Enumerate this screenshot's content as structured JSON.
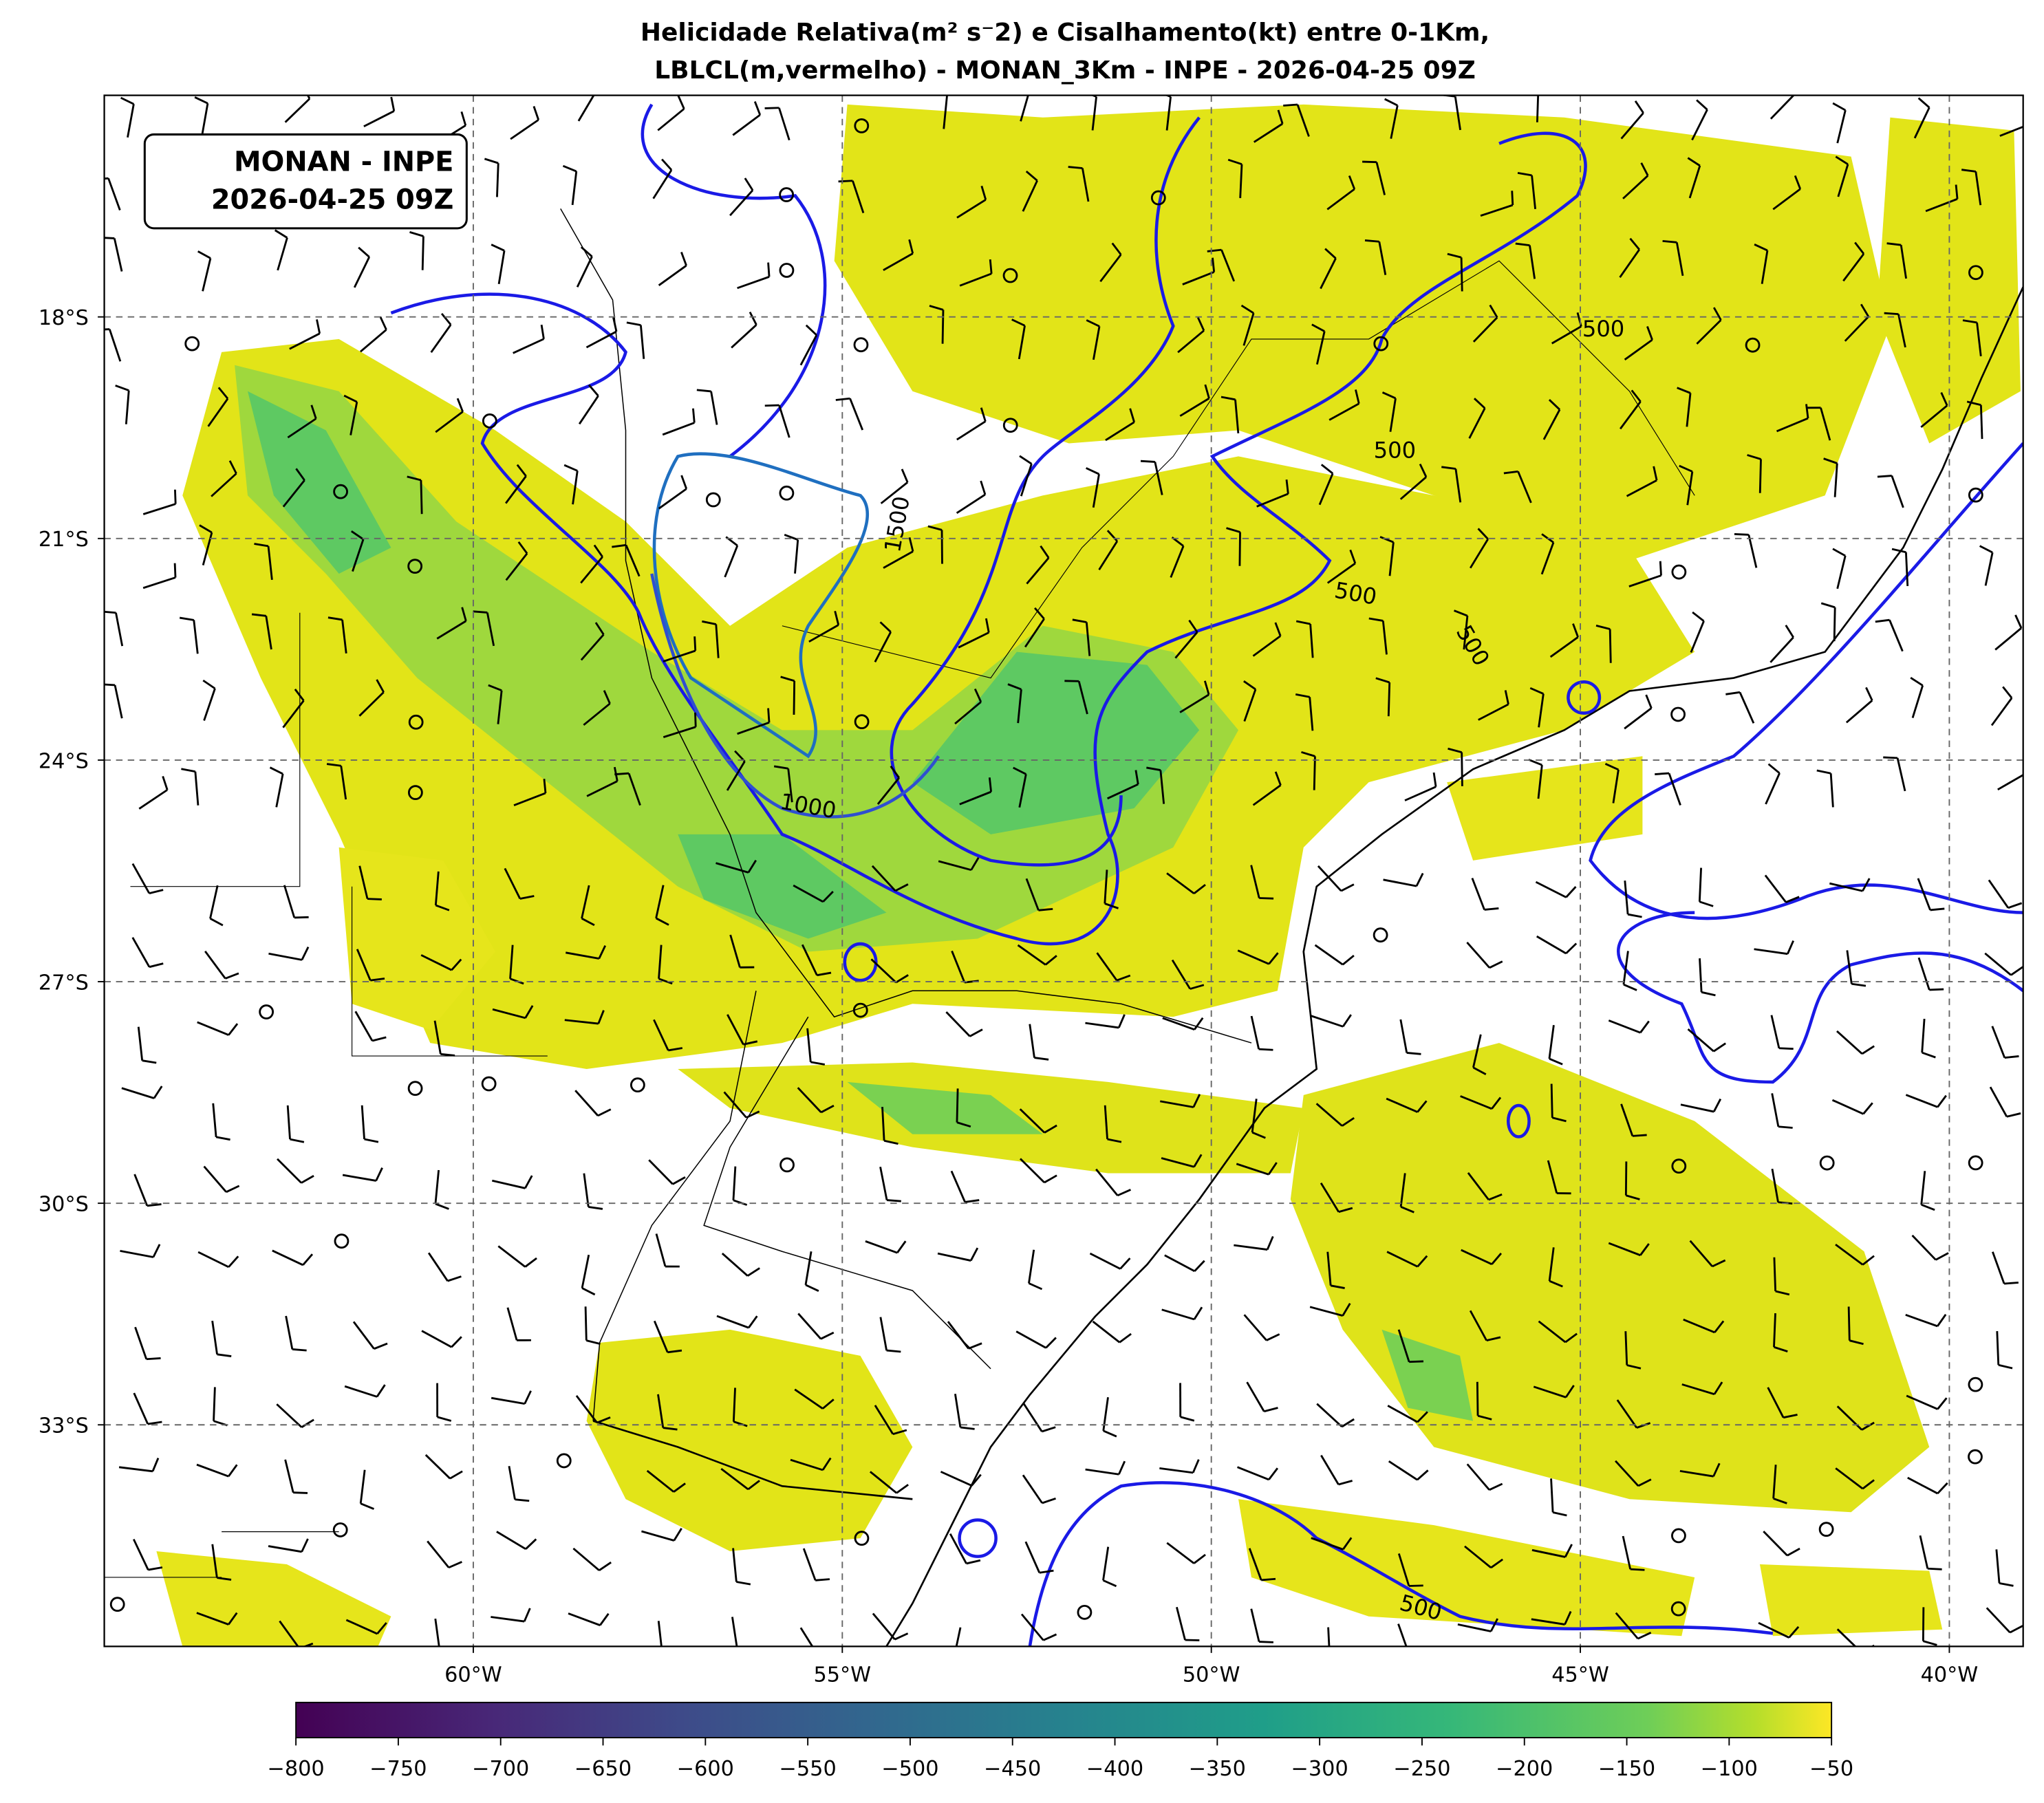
{
  "title": [
    "Helicidade Relativa(m² s⁻2) e Cisalhamento(kt) entre 0-1Km,",
    "LBLCL(m,vermelho) - MONAN_3Km - INPE - 2026-04-25 09Z"
  ],
  "annotation": [
    "MONAN - INPE",
    "2026-04-25 09Z"
  ],
  "map": {
    "xlim": [
      -65,
      -39
    ],
    "ylim": [
      -36,
      -15
    ],
    "xticks": [
      {
        "value": -60,
        "label": "60°W"
      },
      {
        "value": -55,
        "label": "55°W"
      },
      {
        "value": -50,
        "label": "50°W"
      },
      {
        "value": -45,
        "label": "45°W"
      },
      {
        "value": -40,
        "label": "40°W"
      }
    ],
    "yticks": [
      {
        "value": -18,
        "label": "18°S"
      },
      {
        "value": -21,
        "label": "21°S"
      },
      {
        "value": -24,
        "label": "24°S"
      },
      {
        "value": -27,
        "label": "27°S"
      },
      {
        "value": -30,
        "label": "30°S"
      },
      {
        "value": -33,
        "label": "33°S"
      }
    ],
    "contour_labels": [
      500,
      500,
      500,
      500,
      500,
      1000,
      1500
    ]
  },
  "colorbar": {
    "lim": [
      -800,
      -50
    ],
    "ticks": [
      {
        "value": -800,
        "label": "−800"
      },
      {
        "value": -750,
        "label": "−750"
      },
      {
        "value": -700,
        "label": "−700"
      },
      {
        "value": -650,
        "label": "−650"
      },
      {
        "value": -600,
        "label": "−600"
      },
      {
        "value": -550,
        "label": "−550"
      },
      {
        "value": -500,
        "label": "−500"
      },
      {
        "value": -450,
        "label": "−450"
      },
      {
        "value": -400,
        "label": "−400"
      },
      {
        "value": -350,
        "label": "−350"
      },
      {
        "value": -300,
        "label": "−300"
      },
      {
        "value": -250,
        "label": "−250"
      },
      {
        "value": -200,
        "label": "−200"
      },
      {
        "value": -150,
        "label": "−150"
      },
      {
        "value": -100,
        "label": "−100"
      },
      {
        "value": -50,
        "label": "−50"
      }
    ]
  }
}
